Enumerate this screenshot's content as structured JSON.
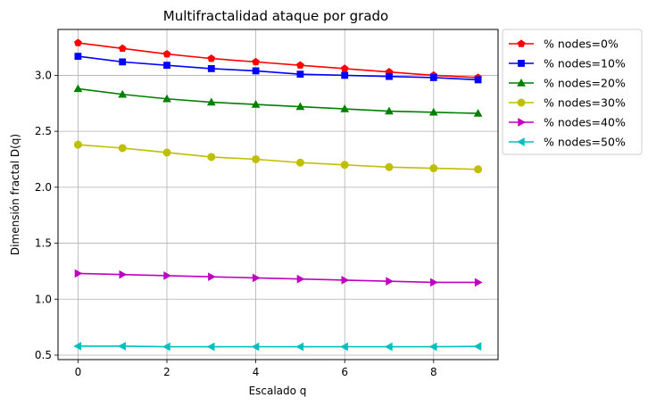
{
  "chart_data": {
    "type": "line",
    "title": "Multifractalidad ataque por grado",
    "xlabel": "Escalado q",
    "ylabel": "Dimensión fractal D(q)",
    "xlim": [
      -0.45,
      9.45
    ],
    "ylim": [
      0.46,
      3.41
    ],
    "xticks": [
      0,
      2,
      4,
      6,
      8
    ],
    "yticks": [
      0.5,
      1.0,
      1.5,
      2.0,
      2.5,
      3.0
    ],
    "xtick_labels": [
      "0",
      "2",
      "4",
      "6",
      "8"
    ],
    "ytick_labels": [
      "0.5",
      "1.0",
      "1.5",
      "2.0",
      "2.5",
      "3.0"
    ],
    "grid": true,
    "legend_position": "outside-top-right",
    "x": [
      0,
      1,
      2,
      3,
      4,
      5,
      6,
      7,
      8,
      9
    ],
    "series": [
      {
        "name": "% nodes=0%",
        "color": "#ff0000",
        "marker": "pentagon",
        "values": [
          3.29,
          3.24,
          3.19,
          3.15,
          3.12,
          3.09,
          3.06,
          3.03,
          3.0,
          2.98
        ]
      },
      {
        "name": "% nodes=10%",
        "color": "#0000ff",
        "marker": "square",
        "values": [
          3.17,
          3.12,
          3.09,
          3.06,
          3.04,
          3.01,
          3.0,
          2.99,
          2.98,
          2.96
        ]
      },
      {
        "name": "% nodes=20%",
        "color": "#008000",
        "marker": "triangle-up",
        "values": [
          2.88,
          2.83,
          2.79,
          2.76,
          2.74,
          2.72,
          2.7,
          2.68,
          2.67,
          2.66
        ]
      },
      {
        "name": "% nodes=30%",
        "color": "#bfbf00",
        "marker": "circle",
        "values": [
          2.38,
          2.35,
          2.31,
          2.27,
          2.25,
          2.22,
          2.2,
          2.18,
          2.17,
          2.16
        ]
      },
      {
        "name": "% nodes=40%",
        "color": "#bf00bf",
        "marker": "triangle-right",
        "values": [
          1.23,
          1.22,
          1.21,
          1.2,
          1.19,
          1.18,
          1.17,
          1.16,
          1.15,
          1.15
        ]
      },
      {
        "name": "% nodes=50%",
        "color": "#00bfbf",
        "marker": "triangle-left",
        "values": [
          0.58,
          0.58,
          0.575,
          0.575,
          0.575,
          0.575,
          0.575,
          0.575,
          0.575,
          0.578
        ]
      }
    ]
  }
}
